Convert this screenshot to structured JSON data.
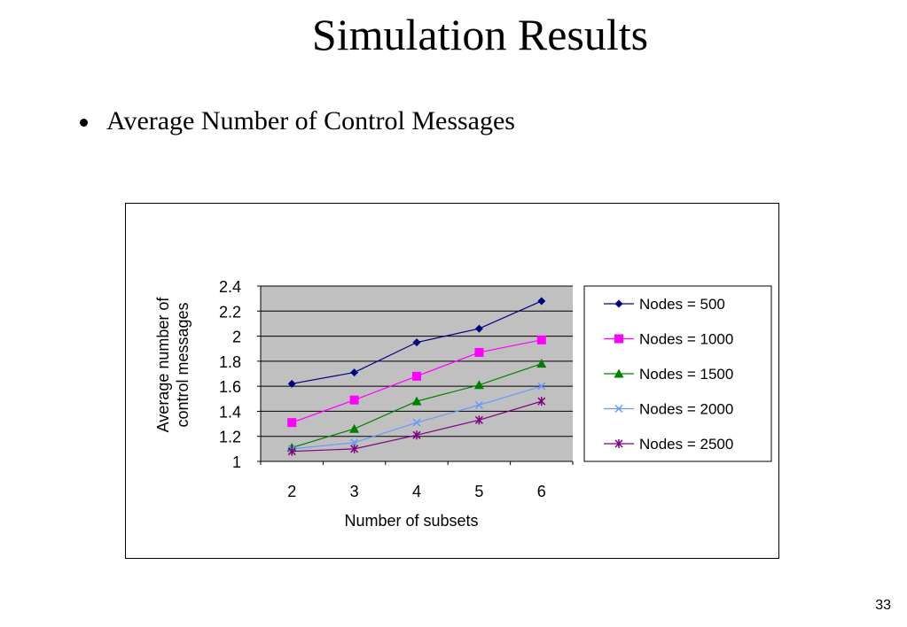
{
  "slide": {
    "title": "Simulation Results",
    "bullet": "Average Number of Control Messages",
    "page_number": "33"
  },
  "colors": {
    "plot_background": "#c0c0c0",
    "gridline": "#000000"
  },
  "chart_data": {
    "type": "line",
    "title": "",
    "xlabel": "Number of subsets",
    "ylabel_lines": [
      "Average number of",
      "control messages"
    ],
    "x": [
      2,
      3,
      4,
      5,
      6
    ],
    "y_ticks": [
      "1",
      "1.2",
      "1.4",
      "1.6",
      "1.8",
      "2",
      "2.2",
      "2.4"
    ],
    "ylim": [
      1,
      2.4
    ],
    "grid": true,
    "legend_position": "right",
    "series": [
      {
        "name": "Nodes = 500",
        "color": "#00007f",
        "marker": "diamond",
        "values": [
          1.62,
          1.71,
          1.95,
          2.06,
          2.28
        ]
      },
      {
        "name": "Nodes = 1000",
        "color": "#ff00ff",
        "marker": "square",
        "values": [
          1.31,
          1.49,
          1.68,
          1.87,
          1.97
        ]
      },
      {
        "name": "Nodes = 1500",
        "color": "#008000",
        "marker": "triangle",
        "values": [
          1.11,
          1.26,
          1.48,
          1.61,
          1.78
        ]
      },
      {
        "name": "Nodes = 2000",
        "color": "#6699ff",
        "marker": "x",
        "values": [
          1.1,
          1.15,
          1.31,
          1.45,
          1.6
        ]
      },
      {
        "name": "Nodes = 2500",
        "color": "#800080",
        "marker": "star",
        "values": [
          1.08,
          1.1,
          1.21,
          1.33,
          1.48
        ]
      }
    ]
  }
}
